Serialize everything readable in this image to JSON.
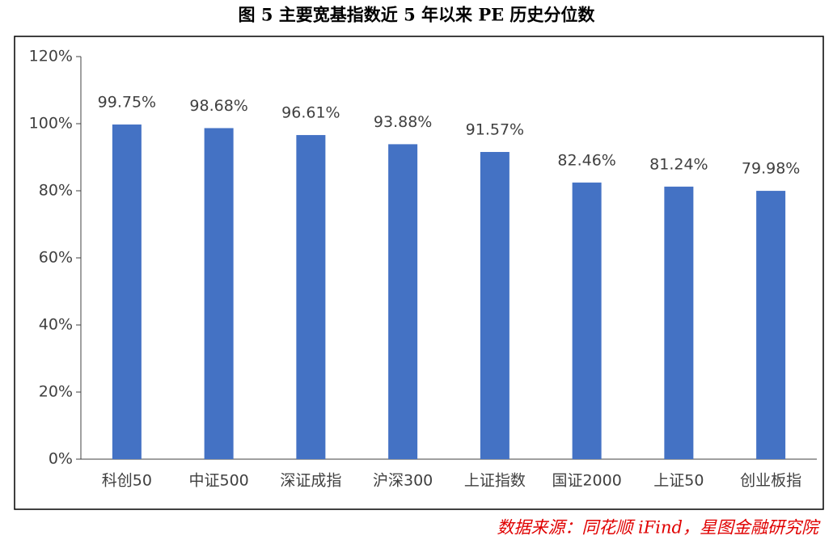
{
  "chart_data": {
    "type": "bar",
    "title": "图 5 主要宽基指数近 5 年以来 PE 历史分位数",
    "source": "数据来源：同花顺 iFind，星图金融研究院",
    "categories": [
      "科创50",
      "中证500",
      "深证成指",
      "沪深300",
      "上证指数",
      "国证2000",
      "上证50",
      "创业板指"
    ],
    "values": [
      99.75,
      98.68,
      96.61,
      93.88,
      91.57,
      82.46,
      81.24,
      79.98
    ],
    "value_labels": [
      "99.75%",
      "98.68%",
      "96.61%",
      "93.88%",
      "91.57%",
      "82.46%",
      "81.24%",
      "79.98%"
    ],
    "color": "#4472c4",
    "ylim": [
      0,
      120
    ],
    "yticks": [
      {
        "value": 0,
        "label": "0%"
      },
      {
        "value": 20,
        "label": "20%"
      },
      {
        "value": 40,
        "label": "40%"
      },
      {
        "value": 60,
        "label": "60%"
      },
      {
        "value": 80,
        "label": "80%"
      },
      {
        "value": 100,
        "label": "100%"
      },
      {
        "value": 120,
        "label": "120%"
      }
    ],
    "grid": false
  }
}
